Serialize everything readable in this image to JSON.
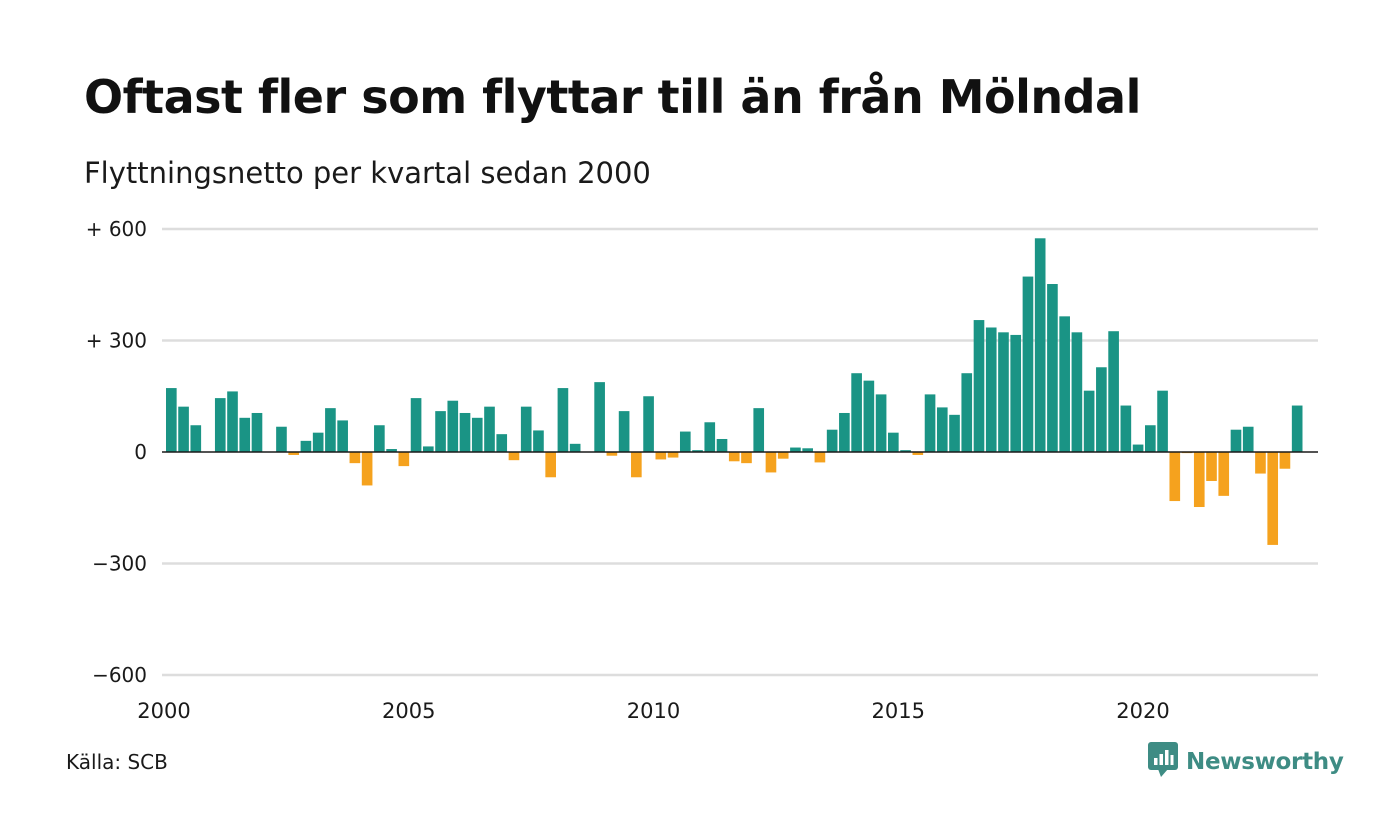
{
  "title": "Oftast fler som flyttar till än från Mölndal",
  "subtitle": "Flyttningsnetto per kvartal sedan 2000",
  "source": "Källa: SCB",
  "brand": {
    "name": "Newsworthy",
    "color": "#3e8c84",
    "icon": "newsworthy-logo-icon"
  },
  "colors": {
    "positive": "#1a9485",
    "negative": "#f5a21e",
    "grid": "#dddddd",
    "zero_line": "#1a1a1a"
  },
  "chart_data": {
    "type": "bar",
    "title": "Oftast fler som flyttar till än från Mölndal",
    "subtitle": "Flyttningsnetto per kvartal sedan 2000",
    "xlabel": "",
    "ylabel": "",
    "ylim": [
      -600,
      600
    ],
    "y_ticks": [
      600,
      300,
      0,
      -300,
      -600
    ],
    "y_tick_labels": [
      "+ 600",
      "+ 300",
      "0",
      "−300",
      "−600"
    ],
    "x_ticks": [
      2000,
      2005,
      2010,
      2015,
      2020
    ],
    "x_tick_labels": [
      "2000",
      "2005",
      "2010",
      "2015",
      "2020"
    ],
    "grid": true,
    "legend": "none",
    "series": [
      {
        "values": [
          172,
          122,
          72,
          0,
          145,
          163,
          92,
          105,
          0,
          68,
          -8,
          30,
          52,
          118,
          85,
          -30,
          -90,
          72,
          8,
          -38,
          145,
          15,
          110,
          138,
          105,
          92,
          122,
          48,
          -22,
          122,
          58,
          -68,
          172,
          22,
          0,
          188,
          -10,
          110,
          -68,
          150,
          -20,
          -15,
          55,
          5,
          80,
          35,
          -25,
          -30,
          118,
          -55,
          -18,
          12,
          10,
          -28,
          60,
          105,
          212,
          192,
          155,
          52,
          5,
          -8,
          155,
          120,
          100,
          212,
          355,
          335,
          322,
          315,
          472,
          575,
          452,
          365,
          322,
          165,
          228,
          325,
          125,
          20,
          72,
          165,
          -132,
          -3,
          -148,
          -78,
          -118,
          60,
          68,
          -58,
          -250,
          -45,
          125
        ]
      }
    ],
    "x_start": 2000.0,
    "x_step": 0.25
  }
}
